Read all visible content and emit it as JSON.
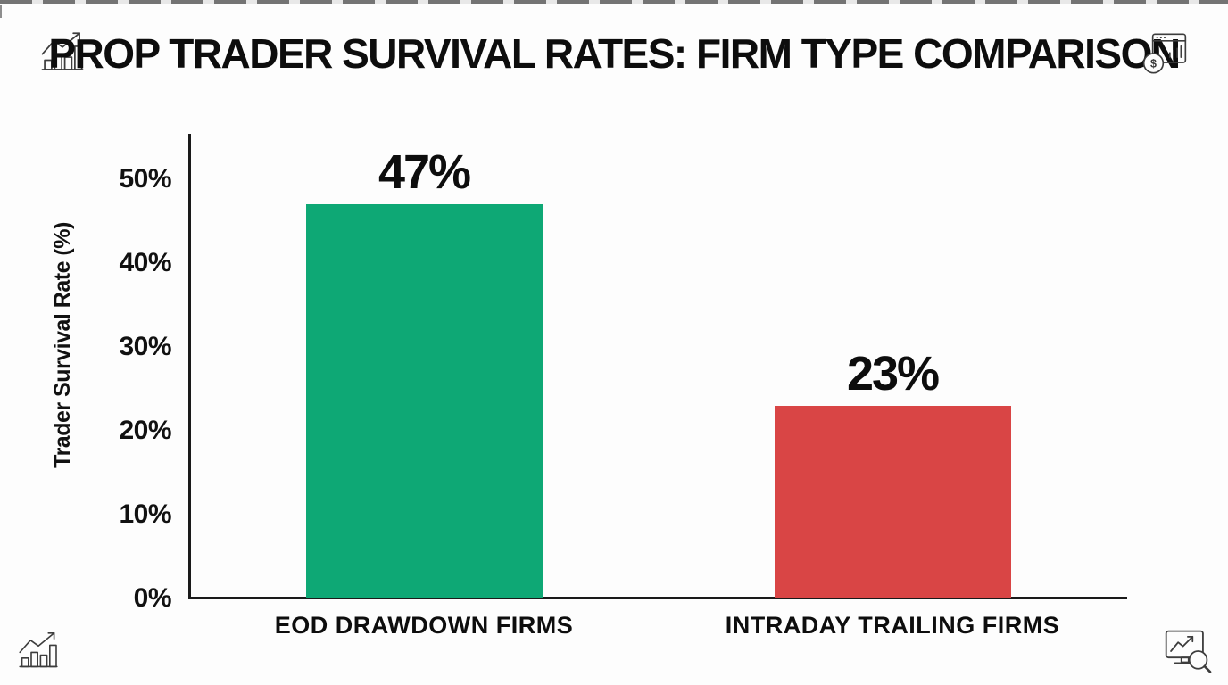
{
  "header": {
    "title": "PROP TRADER SURVIVAL RATES: FIRM TYPE COMPARISON"
  },
  "icons": {
    "top_left": "bar-chart-growth-icon",
    "top_right": "browser-dollar-analytics-icon",
    "bottom_left": "bar-chart-growth-icon",
    "bottom_right": "monitor-chart-search-icon",
    "dollar_glyph": "$"
  },
  "chart_data": {
    "type": "bar",
    "title": "PROP TRADER SURVIVAL RATES: FIRM TYPE COMPARISON",
    "xlabel": "",
    "ylabel": "Trader Survival Rate (%)",
    "categories": [
      "EOD DRAWDOWN FIRMS",
      "INTRADAY TRAILING FIRMS"
    ],
    "values": [
      47,
      23
    ],
    "bar_labels": [
      "47%",
      "23%"
    ],
    "bar_colors": [
      "#0ea875",
      "#d94545"
    ],
    "yticks": [
      0,
      10,
      20,
      30,
      40,
      50
    ],
    "ytick_labels": [
      "0%",
      "10%",
      "20%",
      "30%",
      "40%",
      "50%"
    ],
    "ylim": [
      0,
      55
    ],
    "grid": false,
    "legend": null
  },
  "colors": {
    "bar_green": "#0ea875",
    "bar_red": "#d94545",
    "axis": "#1a1a1a",
    "text": "#111111",
    "icon_stroke": "#3d3d3d",
    "background": "#fdfdfd"
  }
}
